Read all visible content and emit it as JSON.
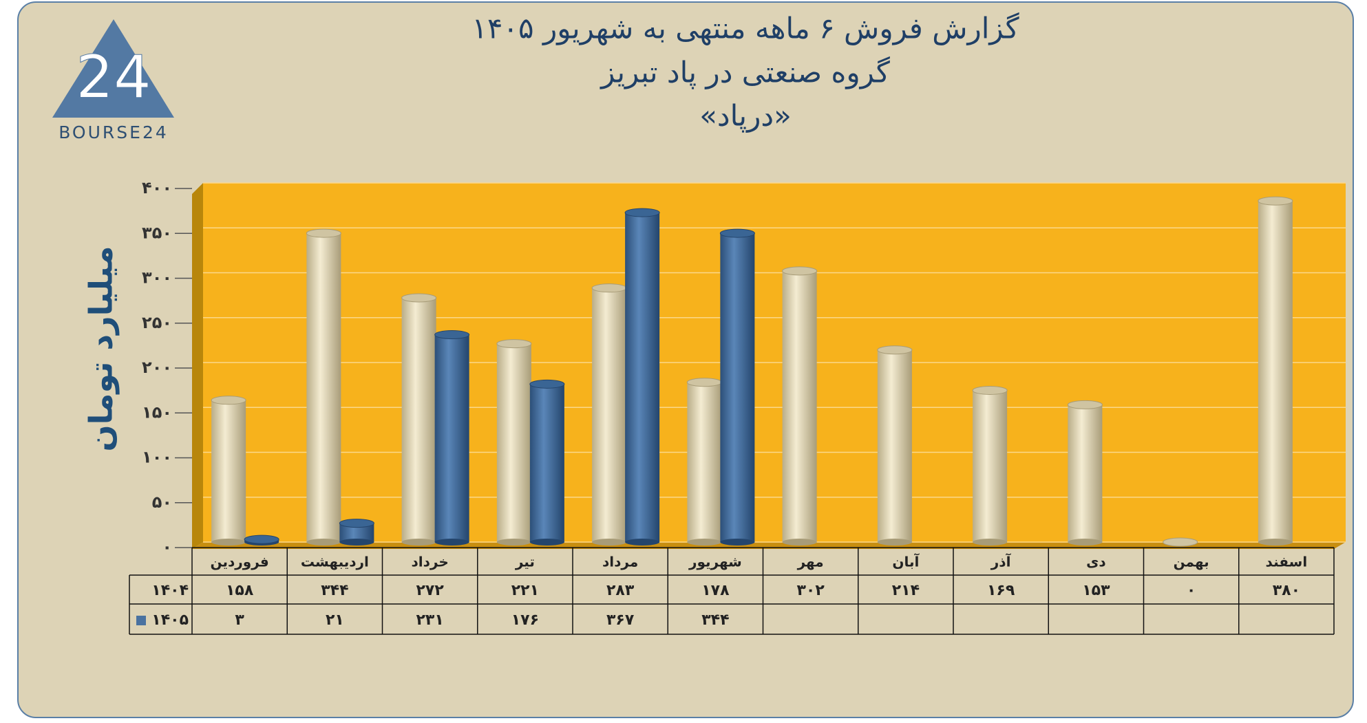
{
  "logo": {
    "mark": "24",
    "text": "BOURSE24"
  },
  "chart_data": {
    "type": "bar",
    "title": "گزارش  فروش ۶ ماهه منتهی به شهریور ۱۴۰۵",
    "subtitle": "گروه صنعتی در پاد تبریز",
    "company": "«درپاد»",
    "y_label": "میلیارد تومان",
    "categories": [
      "فروردین",
      "اردیبهشت",
      "خرداد",
      "تیر",
      "مرداد",
      "شهریور",
      "مهر",
      "آبان",
      "آذر",
      "دی",
      "بهمن",
      "اسفند"
    ],
    "series": [
      {
        "name": "۱۴۰۴",
        "color": "#e8dcb8",
        "values": [
          158,
          344,
          272,
          221,
          283,
          178,
          302,
          214,
          169,
          153,
          0,
          380
        ],
        "value_labels": [
          "۱۵۸",
          "۳۴۴",
          "۲۷۲",
          "۲۲۱",
          "۲۸۳",
          "۱۷۸",
          "۳۰۲",
          "۲۱۴",
          "۱۶۹",
          "۱۵۳",
          "۰",
          "۳۸۰"
        ]
      },
      {
        "name": "۱۴۰۵",
        "color": "#4a72a0",
        "values": [
          3,
          21,
          231,
          176,
          367,
          344,
          null,
          null,
          null,
          null,
          null,
          null
        ],
        "value_labels": [
          "۳",
          "۲۱",
          "۲۳۱",
          "۱۷۶",
          "۳۶۷",
          "۳۴۴",
          null,
          null,
          null,
          null,
          null,
          null
        ]
      }
    ],
    "ylim": [
      0,
      400
    ],
    "yticks": [
      {
        "value": 0,
        "label": "۰"
      },
      {
        "value": 50,
        "label": "۵۰"
      },
      {
        "value": 100,
        "label": "۱۰۰"
      },
      {
        "value": 150,
        "label": "۱۵۰"
      },
      {
        "value": 200,
        "label": "۲۰۰"
      },
      {
        "value": 250,
        "label": "۲۵۰"
      },
      {
        "value": 300,
        "label": "۳۰۰"
      },
      {
        "value": 350,
        "label": "۳۵۰"
      },
      {
        "value": 400,
        "label": "۴۰۰"
      }
    ],
    "grid": true
  }
}
